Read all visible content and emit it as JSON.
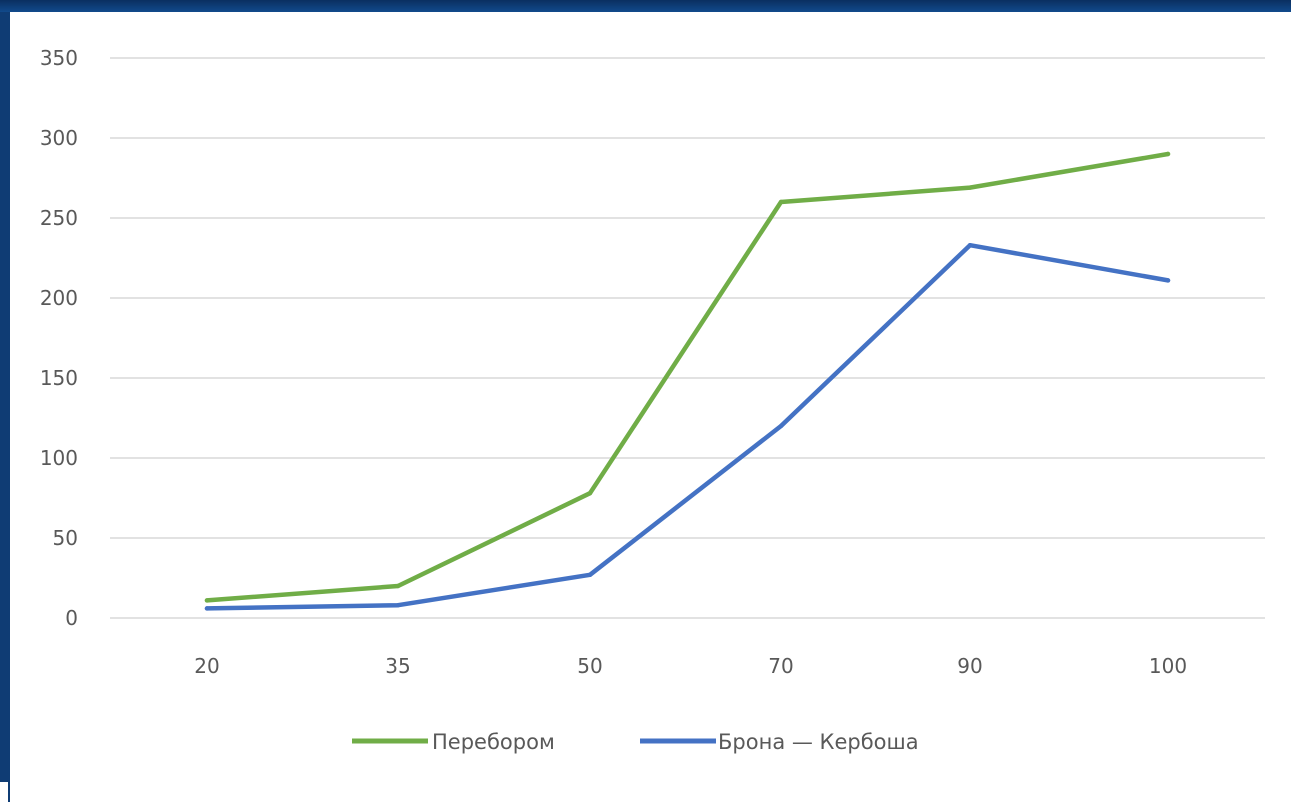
{
  "chart_data": {
    "type": "line",
    "categories": [
      "20",
      "35",
      "50",
      "70",
      "90",
      "100"
    ],
    "ylim": [
      0,
      350
    ],
    "yticks": [
      0,
      50,
      100,
      150,
      200,
      250,
      300,
      350
    ],
    "grid": true,
    "legend_position": "bottom",
    "series": [
      {
        "name": "Перебором",
        "color": "#70ad47",
        "values": [
          11,
          20,
          78,
          260,
          269,
          290
        ]
      },
      {
        "name": "Брона — Кербоша",
        "color": "#4472c4",
        "values": [
          6,
          8,
          27,
          120,
          233,
          211
        ]
      }
    ]
  }
}
